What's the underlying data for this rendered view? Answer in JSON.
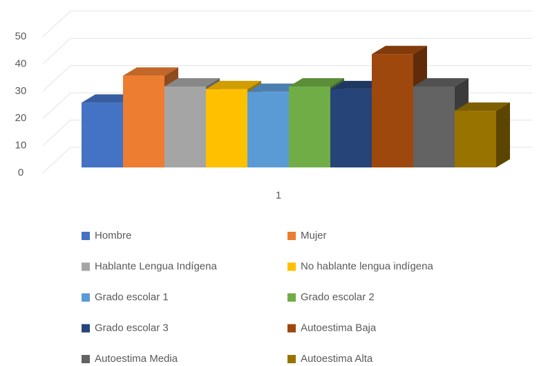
{
  "chart_data": {
    "type": "bar3d",
    "categories": [
      "1"
    ],
    "ylim": [
      0,
      50
    ],
    "yticks": [
      0,
      10,
      20,
      30,
      40,
      50
    ],
    "grid": true,
    "series": [
      {
        "name": "Hombre",
        "color": "#4472c4",
        "values": [
          24
        ]
      },
      {
        "name": "Mujer",
        "color": "#ed7d31",
        "values": [
          34
        ]
      },
      {
        "name": "Hablante Lengua Indígena",
        "color": "#a5a5a5",
        "values": [
          30
        ]
      },
      {
        "name": "No hablante lengua indígena",
        "color": "#ffc000",
        "values": [
          29
        ]
      },
      {
        "name": "Grado escolar 1",
        "color": "#5b9bd5",
        "values": [
          28
        ]
      },
      {
        "name": "Grado escolar 2",
        "color": "#70ad47",
        "values": [
          30
        ]
      },
      {
        "name": "Grado escolar 3",
        "color": "#264478",
        "values": [
          29
        ]
      },
      {
        "name": "Autoestima Baja",
        "color": "#9e480e",
        "values": [
          42
        ]
      },
      {
        "name": "Autoestima Media",
        "color": "#636363",
        "values": [
          30
        ]
      },
      {
        "name": "Autoestima Alta",
        "color": "#997300",
        "values": [
          21
        ]
      }
    ]
  }
}
